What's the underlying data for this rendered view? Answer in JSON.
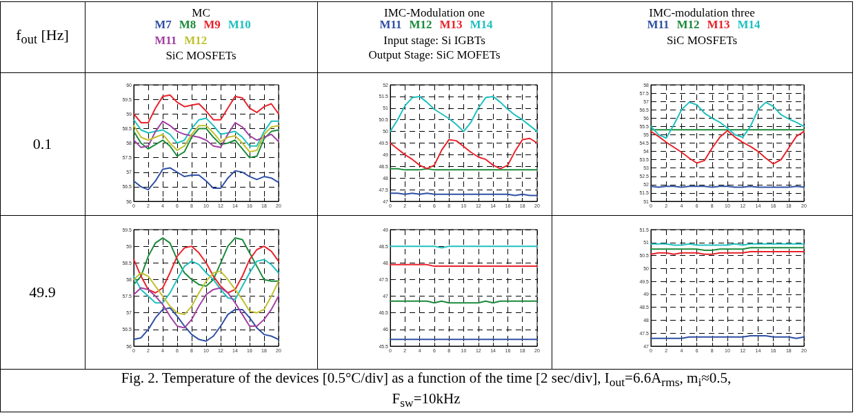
{
  "chart_data": [
    {
      "type": "line",
      "title": "MC",
      "subtitle": "SiC MOSFETs",
      "annotations": [
        "f$_{out}$ [Hz]",
        "0.1"
      ],
      "legend": "top",
      "grid": true,
      "marker": "none",
      "line_style": "solid",
      "x": [
        0,
        1,
        2,
        3,
        4,
        5,
        6,
        7,
        8,
        9,
        10,
        11,
        12,
        13,
        14,
        15,
        16,
        17,
        18,
        19,
        20
      ],
      "xlim": [
        0,
        20
      ],
      "xticks": [
        0,
        2,
        4,
        6,
        8,
        10,
        12,
        14,
        16,
        18,
        20
      ],
      "ylim": [
        56,
        60
      ],
      "yticks": [
        56,
        56.5,
        57,
        57.5,
        58,
        58.5,
        59,
        59.5,
        60
      ],
      "series": [
        {
          "name": "M7",
          "color": "#2e4fa3",
          "values": [
            56.7,
            56.5,
            56.4,
            56.7,
            57.1,
            57.15,
            57.0,
            56.85,
            56.9,
            56.9,
            56.7,
            56.45,
            56.45,
            56.8,
            57.05,
            57.0,
            56.85,
            56.75,
            56.85,
            56.8,
            56.65
          ]
        },
        {
          "name": "M8",
          "color": "#1a8a3a",
          "values": [
            58.4,
            58.0,
            57.8,
            57.95,
            58.1,
            57.9,
            57.55,
            57.7,
            58.2,
            58.5,
            58.5,
            58.2,
            57.95,
            58.0,
            58.1,
            57.8,
            57.5,
            57.55,
            58.15,
            58.4,
            58.45
          ]
        },
        {
          "name": "M9",
          "color": "#e8222a",
          "values": [
            59.0,
            58.7,
            58.7,
            59.2,
            59.6,
            59.65,
            59.4,
            59.25,
            59.3,
            59.35,
            59.1,
            58.8,
            58.8,
            59.2,
            59.6,
            59.55,
            59.2,
            59.05,
            59.25,
            59.35,
            59.0
          ]
        },
        {
          "name": "M10",
          "color": "#1ec0c0",
          "values": [
            58.8,
            58.45,
            58.35,
            58.4,
            58.45,
            58.3,
            58.0,
            58.1,
            58.5,
            58.8,
            58.85,
            58.6,
            58.3,
            58.35,
            58.4,
            58.2,
            57.9,
            57.9,
            58.4,
            58.75,
            58.75
          ]
        },
        {
          "name": "M11",
          "color": "#a040a0",
          "values": [
            58.1,
            57.85,
            57.9,
            58.4,
            58.75,
            58.6,
            58.4,
            58.3,
            58.25,
            58.2,
            58.1,
            57.9,
            57.85,
            58.3,
            58.7,
            58.55,
            58.25,
            58.1,
            58.2,
            58.3,
            58.05
          ]
        },
        {
          "name": "M12",
          "color": "#c0c030",
          "values": [
            58.6,
            58.2,
            58.1,
            58.2,
            58.3,
            58.0,
            57.75,
            57.9,
            58.3,
            58.6,
            58.6,
            58.35,
            58.05,
            58.2,
            58.25,
            58.0,
            57.7,
            57.75,
            58.3,
            58.55,
            58.6
          ]
        }
      ]
    },
    {
      "type": "line",
      "title": "IMC-Modulation one",
      "subtitle": "Input stage: Si IGBTs\nOutput Stage: SiC MOFETs",
      "legend": "top",
      "grid": true,
      "marker": "none",
      "line_style": "solid",
      "x": [
        0,
        1,
        2,
        3,
        4,
        5,
        6,
        7,
        8,
        9,
        10,
        11,
        12,
        13,
        14,
        15,
        16,
        17,
        18,
        19,
        20
      ],
      "xlim": [
        0,
        20
      ],
      "xticks": [
        0,
        2,
        4,
        6,
        8,
        10,
        12,
        14,
        16,
        18,
        20
      ],
      "ylim": [
        47,
        52
      ],
      "yticks": [
        47,
        47.5,
        48,
        48.5,
        49,
        49.5,
        50,
        50.5,
        51,
        51.5,
        52
      ],
      "series": [
        {
          "name": "M11",
          "color": "#2e4fa3",
          "values": [
            47.35,
            47.35,
            47.3,
            47.35,
            47.3,
            47.35,
            47.3,
            47.3,
            47.3,
            47.3,
            47.3,
            47.3,
            47.3,
            47.3,
            47.3,
            47.3,
            47.3,
            47.25,
            47.3,
            47.25,
            47.25
          ]
        },
        {
          "name": "M12",
          "color": "#1a8a3a",
          "values": [
            48.4,
            48.4,
            48.35,
            48.35,
            48.35,
            48.4,
            48.35,
            48.35,
            48.35,
            48.35,
            48.35,
            48.35,
            48.35,
            48.35,
            48.35,
            48.35,
            48.35,
            48.35,
            48.35,
            48.35,
            48.35
          ]
        },
        {
          "name": "M13",
          "color": "#e8222a",
          "values": [
            49.5,
            49.25,
            49.0,
            48.8,
            48.55,
            48.4,
            48.55,
            49.2,
            49.65,
            49.6,
            49.35,
            49.1,
            48.9,
            48.8,
            48.55,
            48.4,
            48.55,
            49.15,
            49.65,
            49.7,
            49.5
          ]
        },
        {
          "name": "M14",
          "color": "#1ec0c0",
          "values": [
            50.0,
            50.5,
            51.1,
            51.45,
            51.5,
            51.25,
            50.95,
            50.75,
            50.55,
            50.3,
            50.0,
            50.4,
            51.0,
            51.45,
            51.5,
            51.25,
            50.95,
            50.7,
            50.5,
            50.25,
            50.0
          ]
        }
      ]
    },
    {
      "type": "line",
      "title": "IMC-modulation three",
      "subtitle": "SiC MOSFETs",
      "legend": "top",
      "grid": true,
      "marker": "none",
      "line_style": "solid",
      "x": [
        0,
        1,
        2,
        3,
        4,
        5,
        6,
        7,
        8,
        9,
        10,
        11,
        12,
        13,
        14,
        15,
        16,
        17,
        18,
        19,
        20
      ],
      "xlim": [
        0,
        20
      ],
      "xticks": [
        0,
        2,
        4,
        6,
        8,
        10,
        12,
        14,
        16,
        18,
        20
      ],
      "ylim": [
        51,
        58
      ],
      "yticks": [
        51,
        51.5,
        52,
        52.5,
        53,
        53.5,
        54,
        54.5,
        55,
        55.5,
        56,
        56.5,
        57,
        57.5,
        58
      ],
      "series": [
        {
          "name": "M11",
          "color": "#2e4fa3",
          "values": [
            51.9,
            51.85,
            51.9,
            51.9,
            51.85,
            51.9,
            51.9,
            51.9,
            51.85,
            51.9,
            51.9,
            51.85,
            51.85,
            51.9,
            51.85,
            51.85,
            51.85,
            51.85,
            51.85,
            51.9,
            51.85
          ]
        },
        {
          "name": "M12",
          "color": "#1a8a3a",
          "values": [
            55.3,
            55.3,
            55.3,
            55.3,
            55.3,
            55.3,
            55.3,
            55.3,
            55.3,
            55.3,
            55.3,
            55.3,
            55.3,
            55.3,
            55.3,
            55.3,
            55.3,
            55.3,
            55.3,
            55.3,
            55.3
          ]
        },
        {
          "name": "M13",
          "color": "#e8222a",
          "values": [
            55.2,
            54.9,
            54.55,
            54.25,
            53.95,
            53.6,
            53.3,
            53.45,
            54.2,
            54.85,
            55.25,
            54.85,
            54.55,
            54.3,
            54.0,
            53.6,
            53.25,
            53.5,
            54.2,
            54.9,
            55.2
          ]
        },
        {
          "name": "M14",
          "color": "#1ec0c0",
          "values": [
            55.5,
            55.0,
            54.8,
            55.6,
            56.5,
            56.95,
            56.8,
            56.3,
            56.0,
            55.75,
            55.4,
            55.0,
            54.85,
            55.5,
            56.5,
            56.95,
            56.7,
            56.2,
            55.95,
            55.75,
            55.5
          ]
        }
      ]
    },
    {
      "type": "line",
      "annotations": [
        "49.9",
        "Fig. 2. Temperature of the devices  [0.5°C/div] as a function of the time [2 sec/div], I$_{out}$=6.6A$_{rms}$, m$_{i}$≈0.5, F$_{sw}$=10kHz"
      ],
      "grid": true,
      "marker": "none",
      "line_style": "solid",
      "x": [
        0,
        1,
        2,
        3,
        4,
        5,
        6,
        7,
        8,
        9,
        10,
        11,
        12,
        13,
        14,
        15,
        16,
        17,
        18,
        19,
        20
      ],
      "xlim": [
        0,
        20
      ],
      "xticks": [
        0,
        2,
        4,
        6,
        8,
        10,
        12,
        14,
        16,
        18,
        20
      ],
      "ylim": [
        56,
        59.5
      ],
      "yticks": [
        56,
        56.5,
        57,
        57.5,
        58,
        58.5,
        59,
        59.5
      ],
      "series": [
        {
          "color": "#2e4fa3",
          "values": [
            56.2,
            56.25,
            56.5,
            56.85,
            57.1,
            57.15,
            56.9,
            56.6,
            56.35,
            56.2,
            56.15,
            56.3,
            56.6,
            56.95,
            57.1,
            57.1,
            56.85,
            56.55,
            56.35,
            56.3,
            56.2
          ]
        },
        {
          "color": "#1a8a3a",
          "values": [
            57.85,
            58.1,
            58.7,
            59.1,
            59.25,
            59.1,
            58.6,
            58.2,
            58.0,
            57.85,
            57.8,
            58.0,
            58.5,
            59.0,
            59.25,
            59.2,
            58.8,
            58.4,
            58.0,
            57.95,
            57.95
          ]
        },
        {
          "color": "#e8222a",
          "values": [
            58.6,
            58.1,
            57.7,
            57.6,
            57.75,
            58.2,
            58.7,
            58.95,
            59.0,
            58.8,
            58.5,
            58.1,
            57.8,
            57.6,
            57.7,
            58.1,
            58.6,
            58.9,
            59.0,
            58.85,
            58.55
          ]
        },
        {
          "color": "#1ec0c0",
          "values": [
            58.1,
            57.7,
            57.5,
            57.3,
            57.3,
            57.6,
            58.0,
            58.4,
            58.55,
            58.45,
            58.2,
            58.0,
            57.7,
            57.45,
            57.4,
            57.8,
            58.2,
            58.55,
            58.6,
            58.45,
            58.2
          ]
        },
        {
          "color": "#a040a0",
          "values": [
            57.55,
            57.75,
            57.7,
            57.5,
            57.25,
            56.9,
            56.6,
            56.55,
            56.8,
            57.2,
            57.55,
            57.7,
            57.75,
            57.6,
            57.3,
            56.95,
            56.6,
            56.6,
            56.8,
            57.1,
            57.5
          ]
        },
        {
          "color": "#c0c030",
          "values": [
            58.0,
            58.2,
            58.1,
            57.8,
            57.5,
            57.2,
            57.0,
            56.95,
            57.2,
            57.6,
            57.95,
            58.2,
            58.25,
            58.0,
            57.7,
            57.4,
            57.05,
            57.0,
            57.1,
            57.5,
            57.95
          ]
        }
      ]
    },
    {
      "type": "line",
      "grid": true,
      "marker": "none",
      "line_style": "solid",
      "x": [
        0,
        1,
        2,
        3,
        4,
        5,
        6,
        7,
        8,
        9,
        10,
        11,
        12,
        13,
        14,
        15,
        16,
        17,
        18,
        19,
        20
      ],
      "xlim": [
        0,
        20
      ],
      "xticks": [
        0,
        2,
        4,
        6,
        8,
        10,
        12,
        14,
        16,
        18,
        20
      ],
      "ylim": [
        45.5,
        49
      ],
      "yticks": [
        45.5,
        46,
        46.5,
        47,
        47.5,
        48,
        48.5,
        49
      ],
      "series": [
        {
          "color": "#2e4fa3",
          "values": [
            45.7,
            45.7,
            45.7,
            45.7,
            45.7,
            45.7,
            45.7,
            45.7,
            45.7,
            45.7,
            45.7,
            45.7,
            45.7,
            45.7,
            45.7,
            45.7,
            45.7,
            45.7,
            45.7,
            45.7,
            45.7
          ]
        },
        {
          "color": "#1a8a3a",
          "values": [
            46.85,
            46.85,
            46.85,
            46.85,
            46.85,
            46.85,
            46.8,
            46.85,
            46.8,
            46.8,
            46.8,
            46.8,
            46.8,
            46.85,
            46.8,
            46.85,
            46.85,
            46.85,
            46.85,
            46.85,
            46.85
          ]
        },
        {
          "color": "#e8222a",
          "values": [
            47.95,
            47.95,
            47.95,
            47.95,
            47.95,
            47.95,
            47.9,
            47.9,
            47.9,
            47.9,
            47.9,
            47.9,
            47.9,
            47.9,
            47.9,
            47.9,
            47.9,
            47.9,
            47.9,
            47.9,
            47.9
          ]
        },
        {
          "color": "#1ec0c0",
          "values": [
            48.5,
            48.5,
            48.5,
            48.5,
            48.5,
            48.5,
            48.5,
            48.45,
            48.5,
            48.5,
            48.5,
            48.5,
            48.5,
            48.5,
            48.5,
            48.5,
            48.5,
            48.5,
            48.5,
            48.5,
            48.5
          ]
        }
      ]
    },
    {
      "type": "line",
      "grid": true,
      "marker": "none",
      "line_style": "solid",
      "x": [
        0,
        1,
        2,
        3,
        4,
        5,
        6,
        7,
        8,
        9,
        10,
        11,
        12,
        13,
        14,
        15,
        16,
        17,
        18,
        19,
        20
      ],
      "xlim": [
        0,
        20
      ],
      "xticks": [
        0,
        2,
        4,
        6,
        8,
        10,
        12,
        14,
        16,
        18,
        20
      ],
      "ylim": [
        47,
        51.5
      ],
      "yticks": [
        47,
        47.5,
        48,
        48.5,
        49,
        49.5,
        50,
        50.5,
        51,
        51.5
      ],
      "series": [
        {
          "color": "#2e4fa3",
          "values": [
            47.3,
            47.3,
            47.3,
            47.3,
            47.3,
            47.35,
            47.35,
            47.35,
            47.35,
            47.35,
            47.35,
            47.35,
            47.35,
            47.4,
            47.4,
            47.4,
            47.35,
            47.35,
            47.35,
            47.3,
            47.35
          ]
        },
        {
          "color": "#1a8a3a",
          "values": [
            50.75,
            50.75,
            50.75,
            50.75,
            50.75,
            50.75,
            50.75,
            50.7,
            50.7,
            50.75,
            50.75,
            50.75,
            50.75,
            50.8,
            50.8,
            50.8,
            50.8,
            50.8,
            50.8,
            50.8,
            50.8
          ]
        },
        {
          "color": "#e8222a",
          "values": [
            50.55,
            50.6,
            50.6,
            50.55,
            50.6,
            50.6,
            50.6,
            50.55,
            50.55,
            50.6,
            50.6,
            50.6,
            50.6,
            50.65,
            50.65,
            50.65,
            50.65,
            50.65,
            50.65,
            50.65,
            50.65
          ]
        },
        {
          "color": "#1ec0c0",
          "values": [
            50.95,
            50.95,
            50.95,
            50.9,
            50.9,
            50.95,
            50.9,
            50.9,
            50.9,
            50.9,
            50.9,
            50.95,
            50.9,
            50.95,
            50.95,
            50.95,
            50.95,
            50.95,
            50.95,
            50.95,
            50.95
          ]
        }
      ]
    }
  ]
}
